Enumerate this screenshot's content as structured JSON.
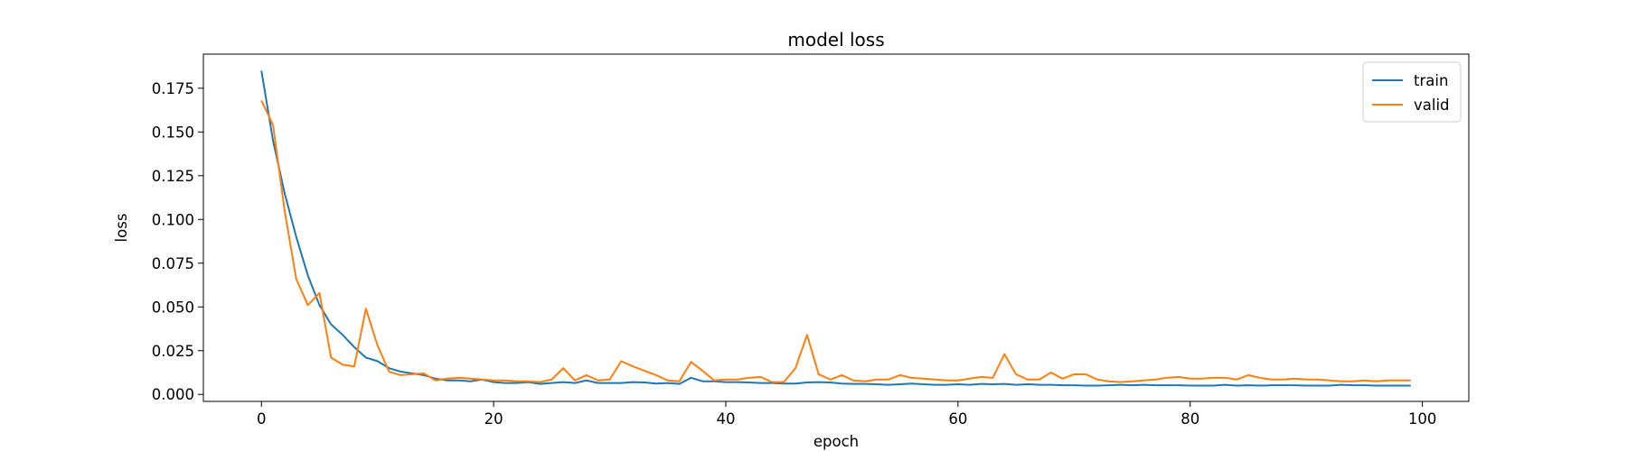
{
  "chart_data": {
    "type": "line",
    "title": "model loss",
    "xlabel": "epoch",
    "ylabel": "loss",
    "xlim": [
      -5,
      104
    ],
    "ylim": [
      -0.004,
      0.1945
    ],
    "xticks": [
      0,
      20,
      40,
      60,
      80,
      100
    ],
    "xtick_labels": [
      "0",
      "20",
      "40",
      "60",
      "80",
      "100"
    ],
    "yticks": [
      0.0,
      0.025,
      0.05,
      0.075,
      0.1,
      0.125,
      0.15,
      0.175
    ],
    "ytick_labels": [
      "0.000",
      "0.025",
      "0.050",
      "0.075",
      "0.100",
      "0.125",
      "0.150",
      "0.175"
    ],
    "grid": false,
    "legend_position": "top-right",
    "colors": {
      "train": "#1f77b4",
      "valid": "#ff7f0e"
    },
    "x": [
      0,
      1,
      2,
      3,
      4,
      5,
      6,
      7,
      8,
      9,
      10,
      11,
      12,
      13,
      14,
      15,
      16,
      17,
      18,
      19,
      20,
      21,
      22,
      23,
      24,
      25,
      26,
      27,
      28,
      29,
      30,
      31,
      32,
      33,
      34,
      35,
      36,
      37,
      38,
      39,
      40,
      41,
      42,
      43,
      44,
      45,
      46,
      47,
      48,
      49,
      50,
      51,
      52,
      53,
      54,
      55,
      56,
      57,
      58,
      59,
      60,
      61,
      62,
      63,
      64,
      65,
      66,
      67,
      68,
      69,
      70,
      71,
      72,
      73,
      74,
      75,
      76,
      77,
      78,
      79,
      80,
      81,
      82,
      83,
      84,
      85,
      86,
      87,
      88,
      89,
      90,
      91,
      92,
      93,
      94,
      95,
      96,
      97,
      98,
      99
    ],
    "series": [
      {
        "name": "train",
        "values": [
          0.185,
          0.145,
          0.115,
          0.09,
          0.068,
          0.051,
          0.04,
          0.034,
          0.027,
          0.021,
          0.019,
          0.015,
          0.013,
          0.012,
          0.011,
          0.009,
          0.008,
          0.008,
          0.0075,
          0.0085,
          0.007,
          0.0065,
          0.0065,
          0.007,
          0.006,
          0.0065,
          0.007,
          0.0065,
          0.008,
          0.0065,
          0.0065,
          0.0065,
          0.007,
          0.0068,
          0.0062,
          0.0065,
          0.006,
          0.0095,
          0.0075,
          0.0075,
          0.007,
          0.007,
          0.0068,
          0.0065,
          0.0065,
          0.0062,
          0.0062,
          0.0068,
          0.007,
          0.0068,
          0.0062,
          0.006,
          0.006,
          0.0058,
          0.0055,
          0.0058,
          0.0062,
          0.0058,
          0.0055,
          0.0055,
          0.0058,
          0.0055,
          0.006,
          0.0058,
          0.006,
          0.0055,
          0.0058,
          0.0055,
          0.0055,
          0.0052,
          0.0052,
          0.005,
          0.005,
          0.0052,
          0.0055,
          0.0052,
          0.0055,
          0.0052,
          0.0052,
          0.0052,
          0.005,
          0.005,
          0.005,
          0.0055,
          0.005,
          0.0052,
          0.005,
          0.0052,
          0.0052,
          0.0052,
          0.005,
          0.005,
          0.005,
          0.0055,
          0.0052,
          0.0052,
          0.005,
          0.005,
          0.005,
          0.005
        ]
      },
      {
        "name": "valid",
        "values": [
          0.168,
          0.154,
          0.105,
          0.066,
          0.051,
          0.058,
          0.021,
          0.017,
          0.016,
          0.049,
          0.028,
          0.013,
          0.011,
          0.0115,
          0.012,
          0.008,
          0.009,
          0.0095,
          0.009,
          0.0085,
          0.008,
          0.008,
          0.0075,
          0.0075,
          0.007,
          0.0085,
          0.015,
          0.008,
          0.011,
          0.008,
          0.0085,
          0.019,
          0.016,
          0.0135,
          0.011,
          0.008,
          0.0075,
          0.0185,
          0.0135,
          0.008,
          0.0085,
          0.0085,
          0.0095,
          0.01,
          0.007,
          0.007,
          0.015,
          0.034,
          0.0115,
          0.0085,
          0.011,
          0.008,
          0.0075,
          0.0085,
          0.0085,
          0.011,
          0.0095,
          0.009,
          0.0085,
          0.008,
          0.008,
          0.009,
          0.01,
          0.0095,
          0.023,
          0.0115,
          0.0085,
          0.0085,
          0.0125,
          0.009,
          0.0115,
          0.0115,
          0.0085,
          0.0075,
          0.007,
          0.0075,
          0.008,
          0.0085,
          0.0095,
          0.01,
          0.009,
          0.009,
          0.0095,
          0.0095,
          0.0085,
          0.011,
          0.0095,
          0.0085,
          0.0085,
          0.009,
          0.0085,
          0.0085,
          0.008,
          0.0075,
          0.0075,
          0.008,
          0.0075,
          0.008,
          0.008,
          0.008
        ]
      }
    ]
  }
}
